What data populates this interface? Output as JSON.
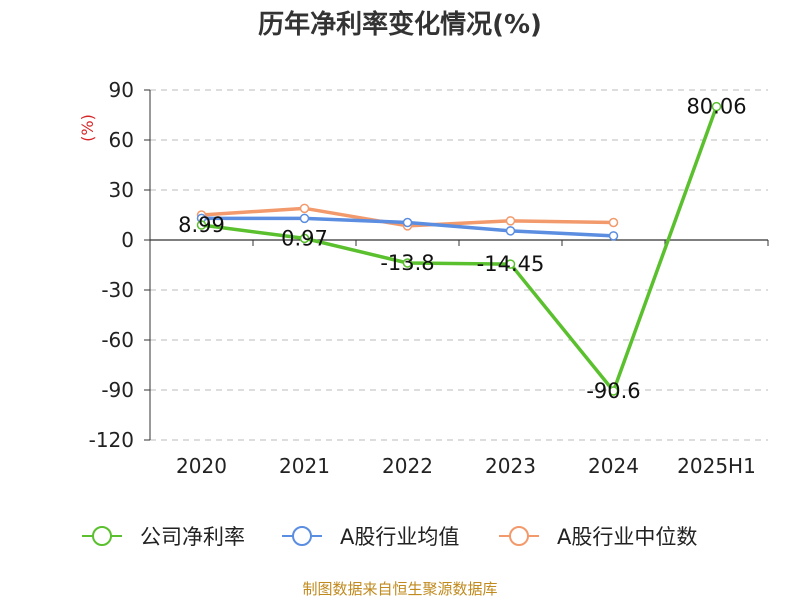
{
  "chart_data": {
    "type": "line",
    "title": "历年净利率变化情况(%)",
    "ylabel": "(%)",
    "xlabel": "",
    "categories": [
      "2020",
      "2021",
      "2022",
      "2023",
      "2024",
      "2025H1"
    ],
    "ylim": [
      -120,
      90
    ],
    "yticks": [
      90,
      60,
      30,
      0,
      -30,
      -60,
      -90,
      -120
    ],
    "grid": true,
    "legend_position": "bottom",
    "series": [
      {
        "name": "公司净利率",
        "color": "#5ac02e",
        "values": [
          8.99,
          0.97,
          -13.8,
          -14.45,
          -90.6,
          80.06
        ],
        "labels": [
          "8.99",
          "0.97",
          "-13.8",
          "-14.45",
          "-90.6",
          "80.06"
        ]
      },
      {
        "name": "A股行业均值",
        "color": "#5b8de0",
        "values": [
          13,
          13,
          10.5,
          5.5,
          2.5,
          null
        ]
      },
      {
        "name": "A股行业中位数",
        "color": "#f29a6c",
        "values": [
          15,
          19,
          8.5,
          11.5,
          10.5,
          null
        ]
      }
    ]
  },
  "source_note": "制图数据来自恒生聚源数据库"
}
